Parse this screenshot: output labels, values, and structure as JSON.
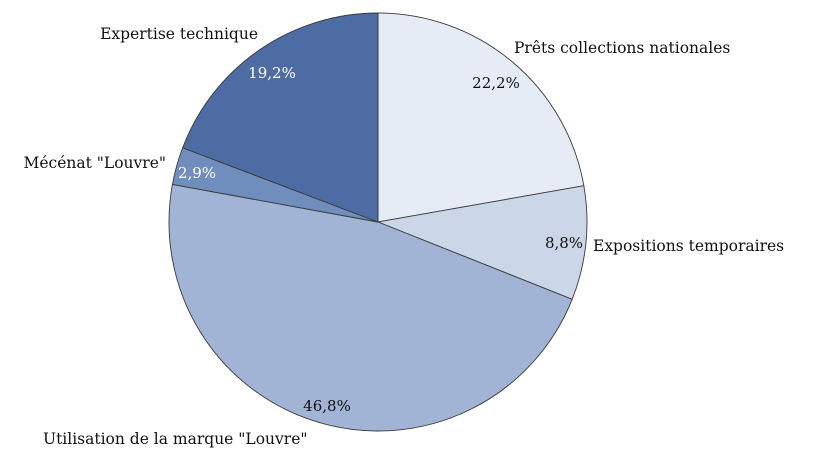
{
  "chart_data": {
    "type": "pie",
    "start": "top, clockwise",
    "slices": [
      {
        "label": "Prêts collections nationales",
        "value": 22.2,
        "value_label": "22,2%",
        "color": "#e6ecf6"
      },
      {
        "label": "Expositions temporaires",
        "value": 8.8,
        "value_label": "8,8%",
        "color": "#cbd7e8"
      },
      {
        "label": "Utilisation de la marque \"Louvre\"",
        "value": 46.8,
        "value_label": "46,8%",
        "color": "#a2b4d5"
      },
      {
        "label": "Mécénat \"Louvre\"",
        "value": 2.9,
        "value_label": "2,9%",
        "color": "#6f8ebe"
      },
      {
        "label": "Expertise technique",
        "value": 19.2,
        "value_label": "19,2%",
        "color": "#4d6ca3"
      }
    ]
  }
}
